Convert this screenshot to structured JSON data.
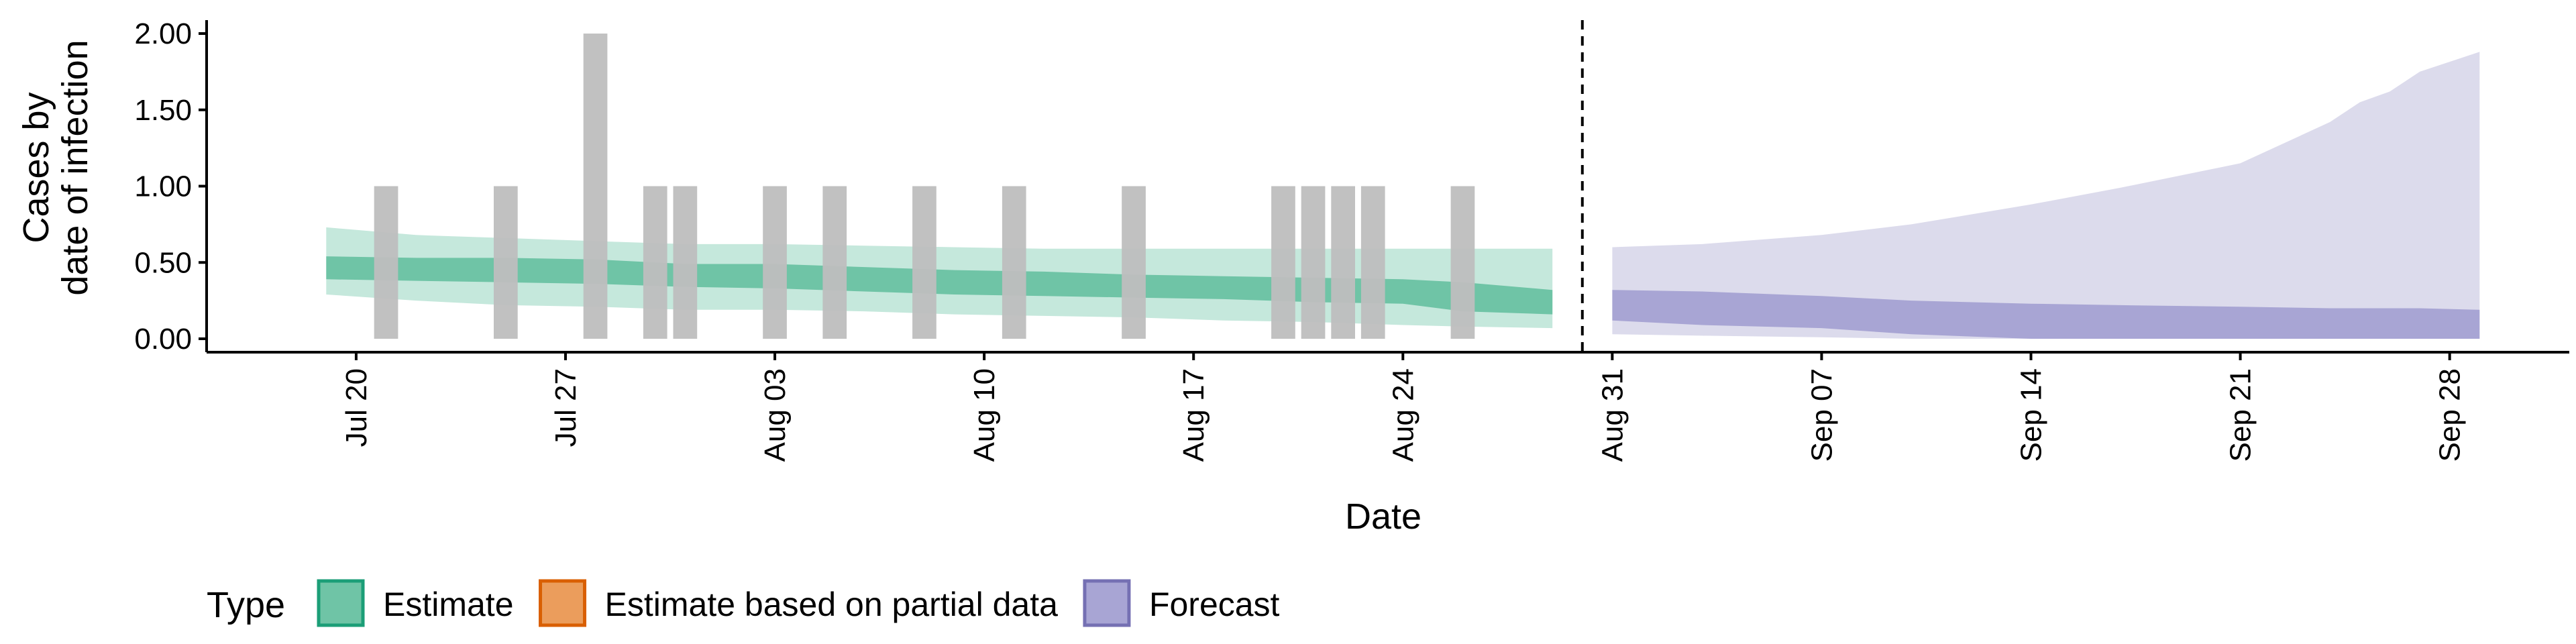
{
  "chart_data": {
    "type": "area",
    "xlabel": "Date",
    "ylabel_lines": [
      "Cases by",
      "date of infection"
    ],
    "ylim": [
      0,
      2.0
    ],
    "yticks": [
      0,
      0.5,
      1.0,
      1.5,
      2.0
    ],
    "ytick_labels": [
      "0.00",
      "0.50",
      "1.00",
      "1.50",
      "2.00"
    ],
    "x_range": [
      "2020-07-15",
      "2020-10-02"
    ],
    "xticks": [
      {
        "date": "2020-07-20",
        "label": "Jul 20"
      },
      {
        "date": "2020-07-27",
        "label": "Jul 27"
      },
      {
        "date": "2020-08-03",
        "label": "Aug 03"
      },
      {
        "date": "2020-08-10",
        "label": "Aug 10"
      },
      {
        "date": "2020-08-17",
        "label": "Aug 17"
      },
      {
        "date": "2020-08-24",
        "label": "Aug 24"
      },
      {
        "date": "2020-08-31",
        "label": "Aug 31"
      },
      {
        "date": "2020-09-07",
        "label": "Sep 07"
      },
      {
        "date": "2020-09-14",
        "label": "Sep 14"
      },
      {
        "date": "2020-09-21",
        "label": "Sep 21"
      },
      {
        "date": "2020-09-28",
        "label": "Sep 28"
      }
    ],
    "forecast_start": "2020-08-30",
    "observed_cases": [
      {
        "date": "2020-07-21",
        "value": 1
      },
      {
        "date": "2020-07-25",
        "value": 1
      },
      {
        "date": "2020-07-28",
        "value": 2
      },
      {
        "date": "2020-07-30",
        "value": 1
      },
      {
        "date": "2020-07-31",
        "value": 1
      },
      {
        "date": "2020-08-03",
        "value": 1
      },
      {
        "date": "2020-08-05",
        "value": 1
      },
      {
        "date": "2020-08-08",
        "value": 1
      },
      {
        "date": "2020-08-11",
        "value": 1
      },
      {
        "date": "2020-08-15",
        "value": 1
      },
      {
        "date": "2020-08-20",
        "value": 1
      },
      {
        "date": "2020-08-21",
        "value": 1
      },
      {
        "date": "2020-08-22",
        "value": 1
      },
      {
        "date": "2020-08-23",
        "value": 1
      },
      {
        "date": "2020-08-26",
        "value": 1
      }
    ],
    "estimate": {
      "name": "Estimate",
      "dates": [
        "2020-07-19",
        "2020-07-22",
        "2020-07-25",
        "2020-07-28",
        "2020-07-31",
        "2020-08-03",
        "2020-08-06",
        "2020-08-09",
        "2020-08-12",
        "2020-08-15",
        "2020-08-18",
        "2020-08-21",
        "2020-08-24",
        "2020-08-26",
        "2020-08-29"
      ],
      "outer_upper": [
        0.73,
        0.68,
        0.66,
        0.64,
        0.62,
        0.62,
        0.61,
        0.6,
        0.59,
        0.59,
        0.59,
        0.59,
        0.59,
        0.59,
        0.59
      ],
      "outer_lower": [
        0.29,
        0.25,
        0.22,
        0.21,
        0.19,
        0.19,
        0.18,
        0.16,
        0.15,
        0.14,
        0.12,
        0.11,
        0.09,
        0.08,
        0.07
      ],
      "inner_upper": [
        0.54,
        0.53,
        0.53,
        0.52,
        0.49,
        0.49,
        0.47,
        0.45,
        0.44,
        0.42,
        0.41,
        0.4,
        0.39,
        0.37,
        0.32
      ],
      "inner_lower": [
        0.39,
        0.38,
        0.37,
        0.36,
        0.34,
        0.33,
        0.31,
        0.29,
        0.28,
        0.27,
        0.26,
        0.24,
        0.23,
        0.18,
        0.16
      ]
    },
    "forecast": {
      "name": "Forecast",
      "dates": [
        "2020-08-31",
        "2020-09-03",
        "2020-09-07",
        "2020-09-10",
        "2020-09-14",
        "2020-09-17",
        "2020-09-21",
        "2020-09-24",
        "2020-09-25",
        "2020-09-26",
        "2020-09-27",
        "2020-09-29"
      ],
      "outer_upper": [
        0.6,
        0.62,
        0.68,
        0.75,
        0.88,
        0.99,
        1.15,
        1.42,
        1.55,
        1.62,
        1.75,
        1.88
      ],
      "outer_lower": [
        0.03,
        0.02,
        0.01,
        0.0,
        0.0,
        0.0,
        0.0,
        0.0,
        0.0,
        0.0,
        0.0,
        0.0
      ],
      "inner_upper": [
        0.32,
        0.31,
        0.28,
        0.25,
        0.23,
        0.22,
        0.21,
        0.2,
        0.2,
        0.2,
        0.2,
        0.19
      ],
      "inner_lower": [
        0.12,
        0.09,
        0.07,
        0.03,
        0.0,
        0.0,
        0.0,
        0.0,
        0.0,
        0.0,
        0.0,
        0.0
      ]
    },
    "grid": false,
    "legend_placement": "bottom-left",
    "legend": {
      "title": "Type",
      "items": [
        {
          "label": "Estimate",
          "fill": "#6fc4a6",
          "stroke": "#1b9e77"
        },
        {
          "label": "Estimate based on partial data",
          "fill": "#eb9d5c",
          "stroke": "#d95f02"
        },
        {
          "label": "Forecast",
          "fill": "#a8a5d4",
          "stroke": "#7570b3"
        }
      ]
    },
    "colors": {
      "estimate_outer": "#c5e8dc",
      "estimate_inner": "#6fc4a6",
      "forecast_outer": "#dcdbec",
      "forecast_inner": "#a8a5d4",
      "bars": "#bebebe",
      "axis": "#000000"
    }
  }
}
